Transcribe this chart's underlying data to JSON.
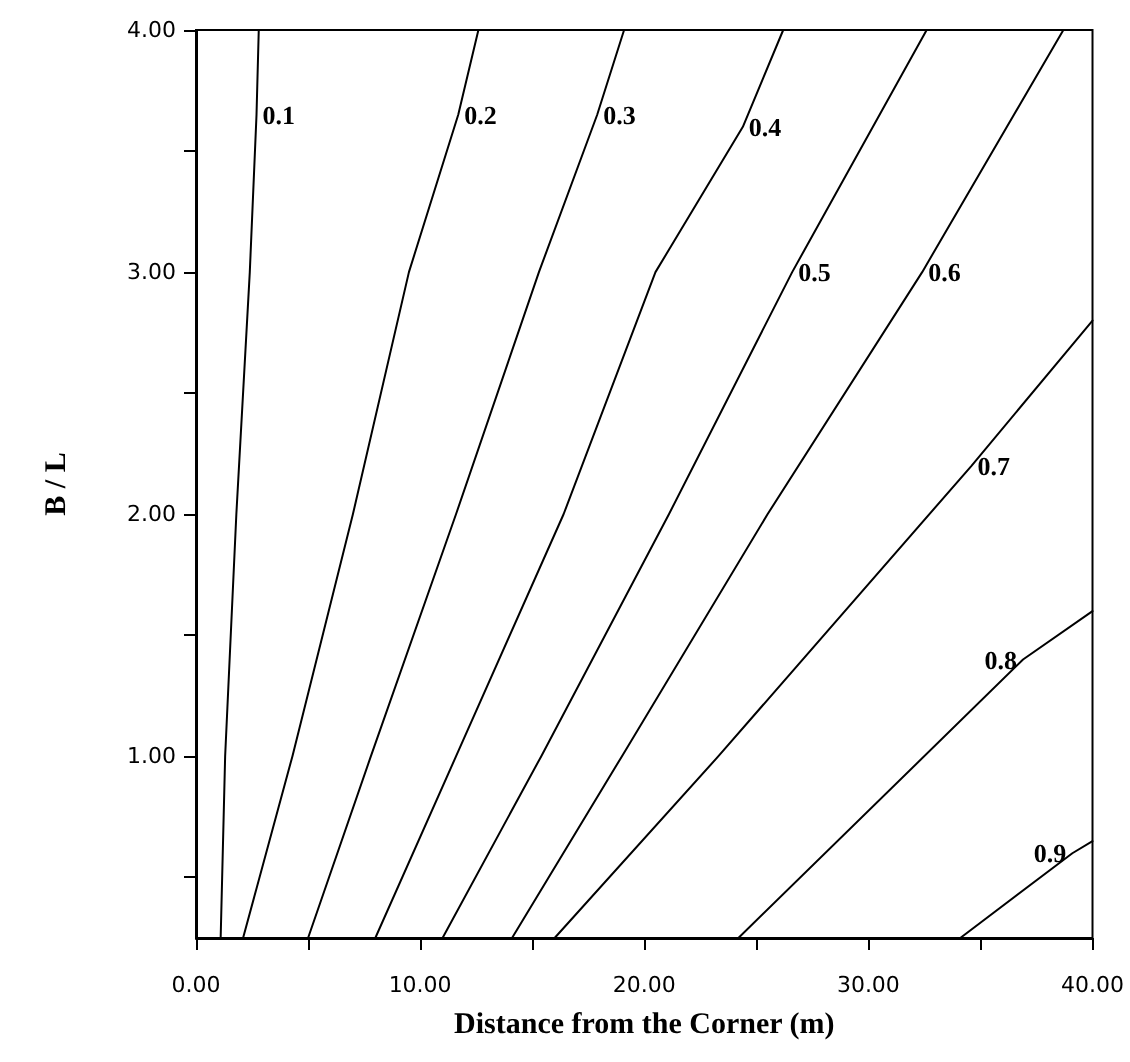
{
  "chart_data": {
    "type": "line",
    "xlabel": "Distance from the Corner (m)",
    "ylabel": "B / L",
    "xlim": [
      0,
      40
    ],
    "ylim": [
      0.25,
      4
    ],
    "xticks": [
      {
        "value": 0,
        "label": "0.00"
      },
      {
        "value": 5,
        "label": null
      },
      {
        "value": 10,
        "label": "10.00"
      },
      {
        "value": 15,
        "label": null
      },
      {
        "value": 20,
        "label": "20.00"
      },
      {
        "value": 25,
        "label": null
      },
      {
        "value": 30,
        "label": "30.00"
      },
      {
        "value": 35,
        "label": null
      },
      {
        "value": 40,
        "label": "40.00"
      }
    ],
    "yticks": [
      {
        "value": 0.5,
        "label": null
      },
      {
        "value": 1,
        "label": "1.00"
      },
      {
        "value": 1.5,
        "label": null
      },
      {
        "value": 2,
        "label": "2.00"
      },
      {
        "value": 2.5,
        "label": null
      },
      {
        "value": 3,
        "label": "3.00"
      },
      {
        "value": 3.5,
        "label": null
      },
      {
        "value": 4,
        "label": "4.00"
      }
    ],
    "marker": "none",
    "series": [
      {
        "name": "0.1",
        "color": "#000000",
        "x": [
          1.1,
          1.3,
          1.8,
          2.4,
          2.7,
          2.8
        ],
        "values": [
          0.25,
          1,
          2,
          3,
          3.65,
          4
        ]
      },
      {
        "name": "0.2",
        "color": "#000000",
        "x": [
          2.1,
          4.3,
          7.0,
          9.5,
          11.7,
          12.6
        ],
        "values": [
          0.25,
          1,
          2,
          3,
          3.65,
          4
        ]
      },
      {
        "name": "0.3",
        "color": "#000000",
        "x": [
          5.0,
          7.8,
          11.6,
          15.3,
          17.9,
          19.1
        ],
        "values": [
          0.25,
          1,
          2,
          3,
          3.65,
          4
        ]
      },
      {
        "name": "0.4",
        "color": "#000000",
        "x": [
          8.0,
          11.6,
          16.4,
          20.5,
          24.4,
          26.2
        ],
        "values": [
          0.25,
          1,
          2,
          3,
          3.6,
          4
        ]
      },
      {
        "name": "0.5",
        "color": "#000000",
        "x": [
          11.0,
          15.4,
          21.1,
          26.6,
          32.6
        ],
        "values": [
          0.25,
          1,
          2,
          3,
          4
        ]
      },
      {
        "name": "0.6",
        "color": "#000000",
        "x": [
          14.1,
          19.0,
          25.5,
          32.4,
          38.7
        ],
        "values": [
          0.25,
          1,
          2,
          3,
          4
        ]
      },
      {
        "name": "0.7",
        "color": "#000000",
        "x": [
          16.0,
          23.3,
          34.6,
          40
        ],
        "values": [
          0.25,
          1,
          2.2,
          2.8
        ]
      },
      {
        "name": "0.8",
        "color": "#000000",
        "x": [
          24.2,
          36.9,
          40
        ],
        "values": [
          0.25,
          1.4,
          1.6
        ]
      },
      {
        "name": "0.9",
        "color": "#000000",
        "x": [
          34.1,
          39.1,
          40
        ],
        "values": [
          0.25,
          0.6,
          0.65
        ]
      }
    ]
  }
}
